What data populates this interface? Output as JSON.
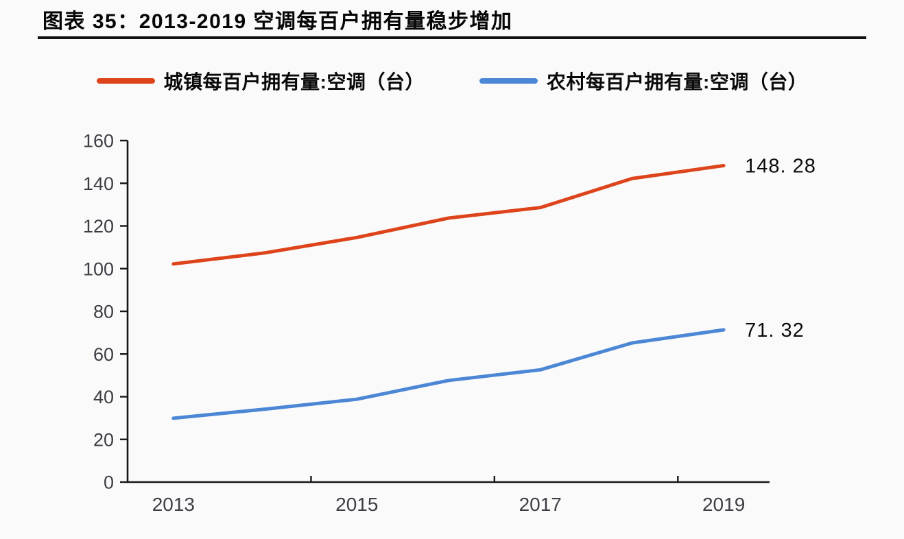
{
  "figure": {
    "title": "图表 35：2013-2019 空调每百户拥有量稳步增加"
  },
  "colors": {
    "background": "#fbfafa",
    "title_text": "#060606",
    "title_rule": "#101010",
    "axis_line": "#161616",
    "tick_label_text": "#3e3d45",
    "end_label_text": "#0a0a0a",
    "urban_line": "#dd441b",
    "rural_line": "#4c87d6"
  },
  "chart_data": {
    "type": "line",
    "title": "图表 35：2013-2019 空调每百户拥有量稳步增加",
    "x": [
      2013,
      2014,
      2015,
      2016,
      2017,
      2018,
      2019
    ],
    "x_tick_labels": [
      "2013",
      "2015",
      "2017",
      "2019"
    ],
    "x_tick_label_indices": [
      0,
      2,
      4,
      6
    ],
    "xlabel": "",
    "ylabel": "",
    "ylim": [
      0,
      160
    ],
    "ytick_step": 20,
    "ytick_labels": [
      "0",
      "20",
      "40",
      "60",
      "80",
      "100",
      "120",
      "140",
      "160"
    ],
    "grid": false,
    "legend_position": "top-center",
    "series": [
      {
        "id": "urban",
        "name": "城镇每百户拥有量:空调（台）",
        "color": "#dd441b",
        "values": [
          102.2,
          107.4,
          114.6,
          123.7,
          128.6,
          142.2,
          148.28
        ],
        "end_label": "148. 28"
      },
      {
        "id": "rural",
        "name": "农村每百户拥有量:空调（台）",
        "color": "#4c87d6",
        "values": [
          29.9,
          34.2,
          38.8,
          47.6,
          52.6,
          65.2,
          71.32
        ],
        "end_label": "71. 32"
      }
    ]
  }
}
